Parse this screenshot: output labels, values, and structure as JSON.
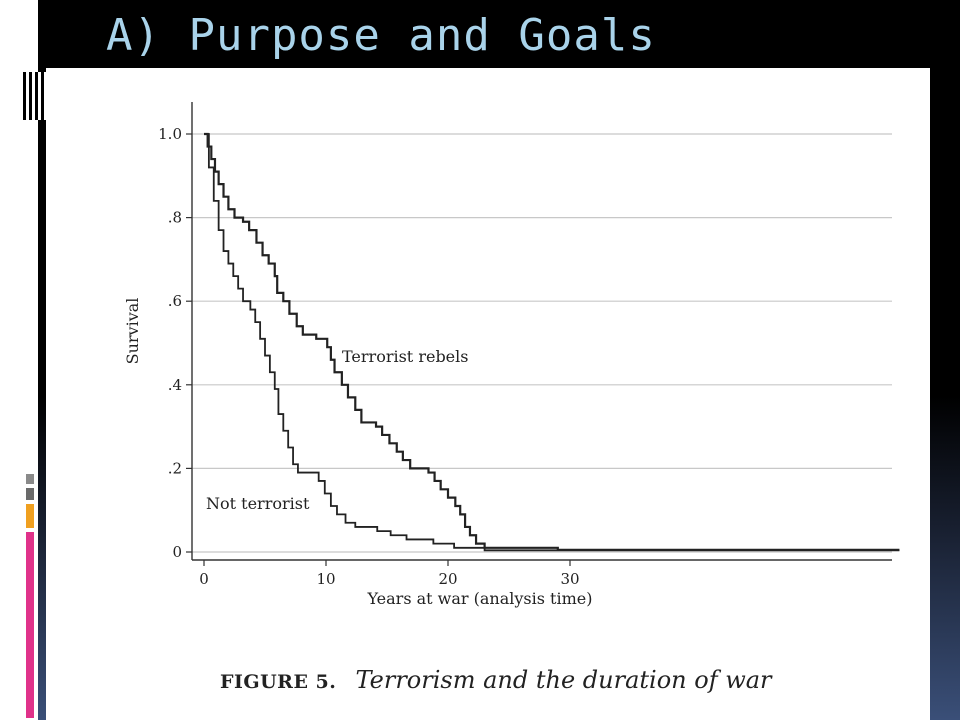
{
  "slide": {
    "title": "A) Purpose and Goals"
  },
  "figure": {
    "number": "FIGURE 5.",
    "caption": "Terrorism and the duration of war"
  },
  "colors": {
    "title": "#a9d3ea",
    "accent_pink": "#e0328a",
    "accent_orange": "#f0a020",
    "accent_gray": "#8a8a8a"
  },
  "chart_data": {
    "type": "line",
    "title": "",
    "xlabel": "Years at war (analysis time)",
    "ylabel": "Survival",
    "x_ticks": [
      0,
      10,
      20,
      30
    ],
    "y_ticks": [
      0,
      0.2,
      0.4,
      0.6,
      0.8,
      1.0
    ],
    "y_tick_labels": [
      "0",
      ".2",
      ".4",
      ".6",
      ".8",
      "1.0"
    ],
    "xlim": [
      0,
      57
    ],
    "ylim": [
      0,
      1.0
    ],
    "grid": "horizontal",
    "annotations": [
      "Terrorist rebels",
      "Not terrorist"
    ],
    "series": [
      {
        "name": "Terrorist rebels",
        "points": [
          [
            0,
            1.0
          ],
          [
            0.3,
            0.97
          ],
          [
            0.6,
            0.94
          ],
          [
            0.9,
            0.91
          ],
          [
            1.2,
            0.88
          ],
          [
            1.6,
            0.85
          ],
          [
            2.0,
            0.82
          ],
          [
            2.5,
            0.8
          ],
          [
            3.2,
            0.79
          ],
          [
            3.7,
            0.77
          ],
          [
            4.3,
            0.74
          ],
          [
            4.8,
            0.71
          ],
          [
            5.3,
            0.69
          ],
          [
            5.8,
            0.66
          ],
          [
            6.0,
            0.62
          ],
          [
            6.5,
            0.6
          ],
          [
            7.0,
            0.57
          ],
          [
            7.6,
            0.54
          ],
          [
            8.1,
            0.52
          ],
          [
            9.2,
            0.51
          ],
          [
            10.1,
            0.49
          ],
          [
            10.4,
            0.46
          ],
          [
            10.7,
            0.43
          ],
          [
            11.3,
            0.4
          ],
          [
            11.8,
            0.37
          ],
          [
            12.4,
            0.34
          ],
          [
            12.9,
            0.31
          ],
          [
            14.1,
            0.3
          ],
          [
            14.6,
            0.28
          ],
          [
            15.2,
            0.26
          ],
          [
            15.8,
            0.24
          ],
          [
            16.3,
            0.22
          ],
          [
            16.9,
            0.2
          ],
          [
            18.4,
            0.19
          ],
          [
            18.9,
            0.17
          ],
          [
            19.4,
            0.15
          ],
          [
            20.0,
            0.13
          ],
          [
            20.6,
            0.11
          ],
          [
            21.0,
            0.09
          ],
          [
            21.4,
            0.06
          ],
          [
            21.8,
            0.04
          ],
          [
            22.3,
            0.02
          ],
          [
            23.0,
            0.01
          ],
          [
            29.0,
            0.005
          ],
          [
            57,
            0.005
          ]
        ]
      },
      {
        "name": "Not terrorist",
        "points": [
          [
            0,
            1.0
          ],
          [
            0.4,
            0.92
          ],
          [
            0.8,
            0.84
          ],
          [
            1.2,
            0.77
          ],
          [
            1.6,
            0.72
          ],
          [
            2.0,
            0.69
          ],
          [
            2.4,
            0.66
          ],
          [
            2.8,
            0.63
          ],
          [
            3.2,
            0.6
          ],
          [
            3.8,
            0.58
          ],
          [
            4.2,
            0.55
          ],
          [
            4.6,
            0.51
          ],
          [
            5.0,
            0.47
          ],
          [
            5.4,
            0.43
          ],
          [
            5.8,
            0.39
          ],
          [
            6.1,
            0.33
          ],
          [
            6.5,
            0.29
          ],
          [
            6.9,
            0.25
          ],
          [
            7.3,
            0.21
          ],
          [
            7.7,
            0.19
          ],
          [
            9.4,
            0.17
          ],
          [
            9.9,
            0.14
          ],
          [
            10.4,
            0.11
          ],
          [
            10.9,
            0.09
          ],
          [
            11.6,
            0.07
          ],
          [
            12.4,
            0.06
          ],
          [
            14.2,
            0.05
          ],
          [
            15.3,
            0.04
          ],
          [
            16.6,
            0.03
          ],
          [
            18.8,
            0.02
          ],
          [
            20.5,
            0.01
          ],
          [
            23.0,
            0.004
          ],
          [
            57,
            0.004
          ]
        ]
      }
    ]
  }
}
